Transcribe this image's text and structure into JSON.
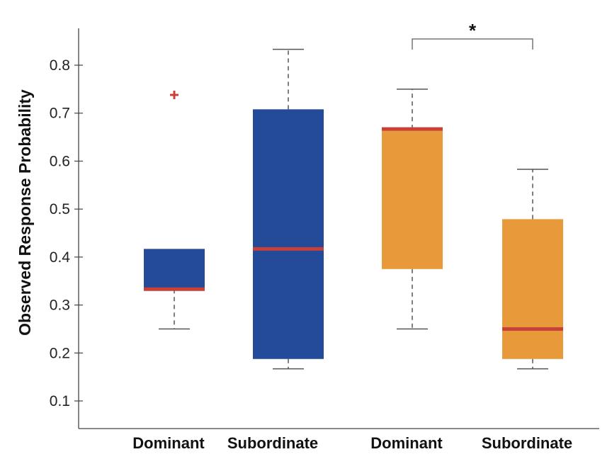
{
  "chart_data": {
    "type": "box",
    "title": "",
    "xlabel": "",
    "ylabel": "Observed Response Probability",
    "ylim": [
      0.05,
      0.88
    ],
    "yticks": [
      "0.1",
      "0.2",
      "0.3",
      "0.4",
      "0.5",
      "0.6",
      "0.7",
      "0.8"
    ],
    "grid": false,
    "categories": [
      "Dominant",
      "Subordinate",
      "Dominant",
      "Subordinate"
    ],
    "boxes": [
      {
        "category": "Dominant",
        "color": "#234b9a",
        "whisker_low": 0.25,
        "q1": 0.333,
        "median": 0.333,
        "q3": 0.417,
        "whisker_high": 0.417,
        "outliers": [
          0.738
        ]
      },
      {
        "category": "Subordinate",
        "color": "#234b9a",
        "whisker_low": 0.167,
        "q1": 0.1875,
        "median": 0.417,
        "q3": 0.708,
        "whisker_high": 0.833,
        "outliers": []
      },
      {
        "category": "Dominant",
        "color": "#e89a3a",
        "whisker_low": 0.25,
        "q1": 0.375,
        "median": 0.667,
        "q3": 0.667,
        "whisker_high": 0.75,
        "outliers": []
      },
      {
        "category": "Subordinate",
        "color": "#e89a3a",
        "whisker_low": 0.167,
        "q1": 0.1875,
        "median": 0.25,
        "q3": 0.479,
        "whisker_high": 0.583,
        "outliers": []
      }
    ],
    "median_color": "#c8403a",
    "annotations": [
      {
        "text": "*",
        "between": [
          3,
          4
        ]
      }
    ]
  }
}
